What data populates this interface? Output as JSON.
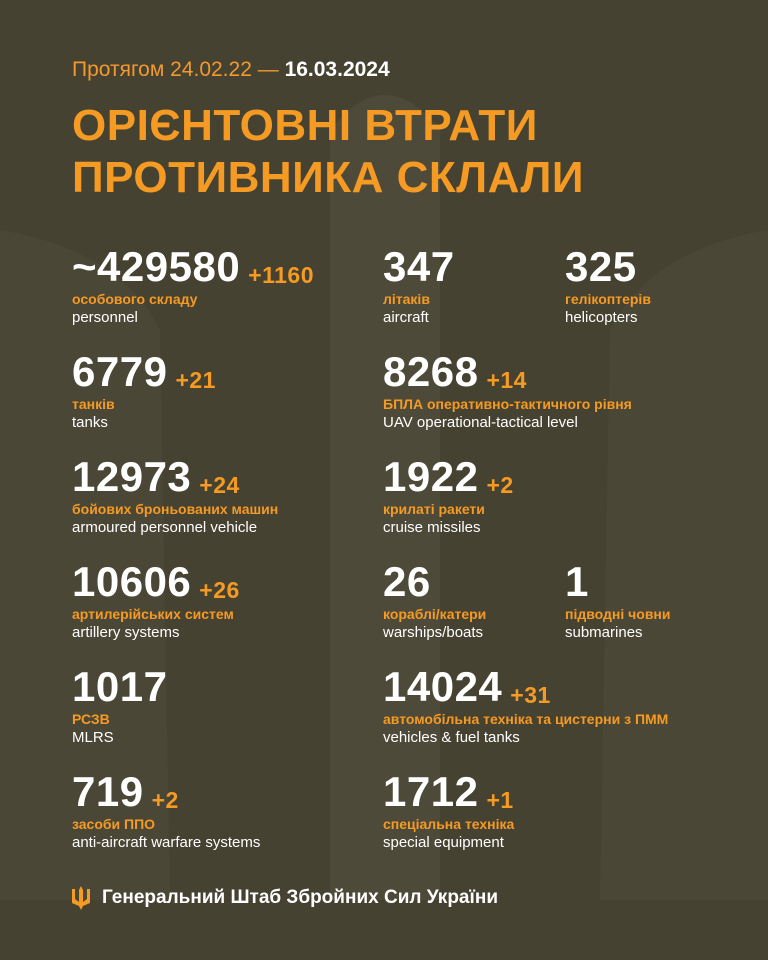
{
  "header": {
    "period_prefix": "Протягом 24.02.22 —",
    "period_end": "16.03.2024",
    "title_line1": "ОРІЄНТОВНІ ВТРАТИ",
    "title_line2": "ПРОТИВНИКА СКЛАЛИ"
  },
  "stats": [
    {
      "value": "~429580",
      "delta": "+1160",
      "ua": "особового складу",
      "en": "personnel"
    },
    {
      "value": "347",
      "delta": "",
      "ua": "літаків",
      "en": "aircraft"
    },
    {
      "value": "325",
      "delta": "",
      "ua": "гелікоптерів",
      "en": "helicopters"
    },
    {
      "value": "6779",
      "delta": "+21",
      "ua": "танків",
      "en": "tanks"
    },
    {
      "value": "8268",
      "delta": "+14",
      "ua": "БПЛА оперативно-тактичного рівня",
      "en": "UAV operational-tactical level"
    },
    {
      "value": "12973",
      "delta": "+24",
      "ua": "бойових броньованих машин",
      "en": "armoured personnel vehicle"
    },
    {
      "value": "1922",
      "delta": "+2",
      "ua": "крилаті ракети",
      "en": "cruise missiles"
    },
    {
      "value": "10606",
      "delta": "+26",
      "ua": "артилерійських систем",
      "en": "artillery systems"
    },
    {
      "value": "26",
      "delta": "",
      "ua": "кораблі/катери",
      "en": "warships/boats"
    },
    {
      "value": "1",
      "delta": "",
      "ua": "підводні човни",
      "en": "submarines"
    },
    {
      "value": "1017",
      "delta": "",
      "ua": "РСЗВ",
      "en": "MLRS"
    },
    {
      "value": "14024",
      "delta": "+31",
      "ua": "автомобільна техніка та цистерни з ПММ",
      "en": "vehicles & fuel tanks"
    },
    {
      "value": "719",
      "delta": "+2",
      "ua": "засоби ППО",
      "en": "anti-aircraft warfare systems"
    },
    {
      "value": "1712",
      "delta": "+1",
      "ua": "спеціальна техніка",
      "en": "special equipment"
    }
  ],
  "footer": {
    "text": "Генеральний Штаб Збройних Сил України",
    "icon": "trident-icon"
  },
  "colors": {
    "background": "#464232",
    "accent": "#f59a23",
    "text": "#ffffff"
  }
}
